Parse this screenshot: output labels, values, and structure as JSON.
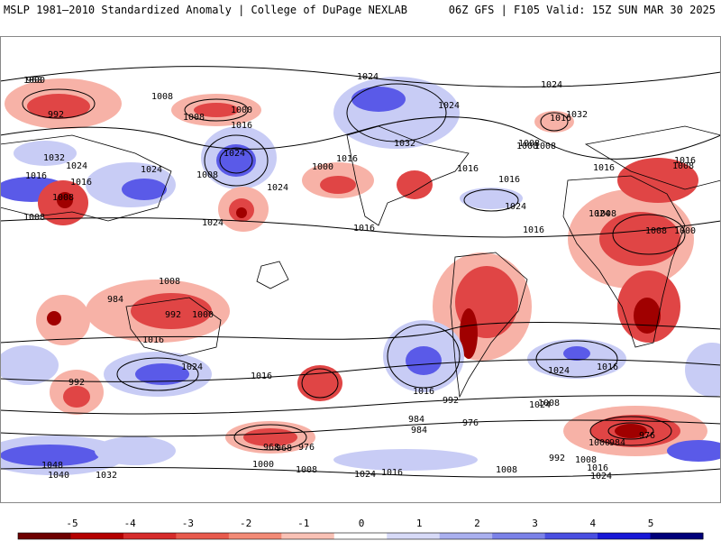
{
  "header": {
    "title_left": "MSLP 1981–2010 Standardized Anomaly | College of DuPage NEXLAB",
    "title_right": "06Z GFS | F105 Valid: 15Z SUN MAR 30 2025"
  },
  "map": {
    "isobar_labels": [
      "1000",
      "992",
      "1008",
      "1008",
      "1000",
      "1016",
      "1024",
      "1032",
      "1024",
      "1032",
      "1024",
      "1016",
      "1008",
      "1024",
      "1016",
      "1008",
      "1008",
      "1000",
      "1016",
      "1024",
      "1024",
      "1024",
      "1016",
      "1008",
      "1008",
      "1032",
      "1024",
      "1016",
      "1008",
      "1008",
      "1016",
      "1016",
      "1008",
      "1024",
      "1016",
      "1008",
      "1000",
      "1016",
      "1024",
      "1016",
      "992",
      "1008",
      "984",
      "1016",
      "1000",
      "992",
      "1024",
      "1016",
      "1016",
      "992",
      "984",
      "976",
      "968",
      "984",
      "1024",
      "1016",
      "1008",
      "1024",
      "1048",
      "1040",
      "1032",
      "968",
      "976",
      "1000",
      "1008",
      "1016",
      "1024",
      "1008",
      "992",
      "1016",
      "1024",
      "1008",
      "1000",
      "984",
      "976",
      "968"
    ],
    "colors": {
      "strong_negative": "#a00000",
      "negative": "#e04545",
      "weak_negative": "#f7b2a7",
      "weak_positive": "#c8ccf5",
      "positive": "#5a5ae8",
      "strong_positive": "#0b0be0",
      "isobar": "#000000"
    }
  },
  "colorbar": {
    "ticks": [
      "-5",
      "-4",
      "-3",
      "-2",
      "-1",
      "0",
      "1",
      "2",
      "3",
      "4",
      "5"
    ],
    "colors": [
      "#6e0000",
      "#b40000",
      "#d62b2b",
      "#e85a4d",
      "#f28a76",
      "#f9c1b5",
      "#ffffff",
      "#d7daf7",
      "#aab0ef",
      "#7b82e8",
      "#4a4fe1",
      "#1818d6",
      "#00007a"
    ]
  }
}
